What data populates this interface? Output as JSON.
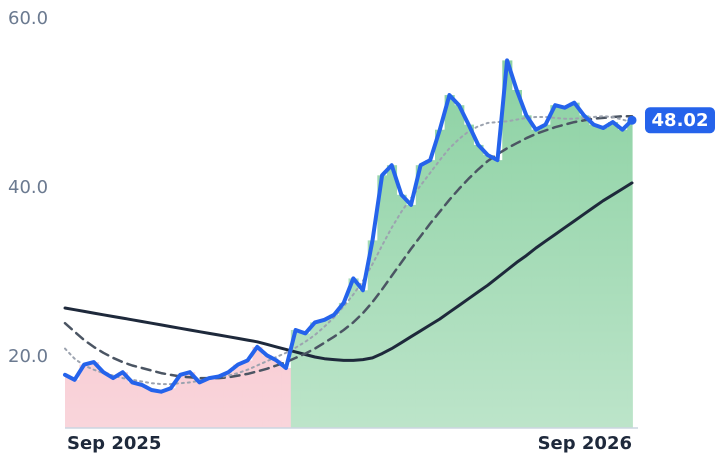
{
  "chart_data": {
    "type": "line",
    "categories": [
      "Sep 2025",
      null,
      null,
      null,
      null,
      null,
      null,
      null,
      null,
      null,
      null,
      null,
      null,
      null,
      null,
      null,
      null,
      null,
      null,
      null,
      null,
      null,
      null,
      null,
      null,
      null,
      null,
      null,
      null,
      null,
      null,
      null,
      null,
      null,
      null,
      null,
      null,
      null,
      null,
      null,
      null,
      null,
      null,
      null,
      null,
      null,
      null,
      null,
      null,
      null,
      null,
      null,
      null,
      null,
      null,
      null,
      null,
      null,
      null,
      "Sep 2026"
    ],
    "series": [
      {
        "color": "#2563eb",
        "style": "solid",
        "width": 4,
        "values": [
          17.9,
          17.3,
          19.1,
          19.4,
          18.2,
          17.5,
          18.2,
          17.0,
          16.7,
          16.1,
          15.9,
          16.3,
          17.9,
          18.2,
          17.0,
          17.5,
          17.7,
          18.2,
          19.1,
          19.6,
          21.2,
          20.2,
          19.6,
          18.7,
          23.2,
          22.8,
          24.1,
          24.4,
          25.0,
          26.4,
          29.3,
          27.9,
          33.8,
          41.5,
          42.7,
          39.2,
          38.0,
          42.7,
          43.3,
          46.9,
          51.0,
          49.8,
          47.5,
          45.1,
          43.9,
          43.3,
          55.1,
          51.6,
          48.6,
          46.9,
          47.5,
          49.8,
          49.5,
          50.1,
          48.6,
          47.5,
          47.1,
          47.8,
          46.9,
          48.02
        ]
      },
      {
        "color": "#9ca3af",
        "style": "dotted",
        "width": 2,
        "values": [
          21.0,
          19.8,
          19.0,
          18.5,
          18.1,
          17.8,
          17.5,
          17.3,
          17.1,
          16.9,
          16.8,
          16.8,
          16.9,
          17.0,
          17.2,
          17.4,
          17.6,
          17.8,
          18.1,
          18.5,
          19.0,
          19.5,
          20.0,
          20.5,
          21.1,
          21.8,
          22.6,
          23.6,
          24.7,
          26.0,
          27.4,
          29.0,
          31.0,
          33.2,
          35.3,
          37.2,
          38.8,
          40.3,
          41.8,
          43.3,
          44.7,
          45.8,
          46.7,
          47.3,
          47.7,
          47.8,
          47.9,
          48.1,
          48.3,
          48.4,
          48.4,
          48.3,
          48.2,
          48.2,
          48.3,
          48.4,
          48.5,
          48.4,
          48.1,
          47.8
        ]
      },
      {
        "color": "#4b5563",
        "style": "dashed",
        "width": 2.5,
        "values": [
          24.0,
          23.0,
          22.0,
          21.2,
          20.5,
          19.9,
          19.4,
          19.0,
          18.7,
          18.4,
          18.1,
          17.9,
          17.7,
          17.6,
          17.5,
          17.5,
          17.5,
          17.6,
          17.8,
          18.0,
          18.3,
          18.6,
          19.0,
          19.4,
          19.9,
          20.4,
          21.0,
          21.7,
          22.4,
          23.2,
          24.1,
          25.2,
          26.5,
          28.0,
          29.6,
          31.2,
          32.8,
          34.3,
          35.8,
          37.2,
          38.6,
          39.9,
          41.1,
          42.2,
          43.2,
          44.0,
          44.7,
          45.3,
          45.9,
          46.4,
          46.8,
          47.2,
          47.5,
          47.8,
          48.0,
          48.2,
          48.3,
          48.4,
          48.5,
          48.5
        ]
      },
      {
        "color": "#1e293b",
        "style": "solid",
        "width": 3,
        "values": [
          25.8,
          25.6,
          25.4,
          25.2,
          25.0,
          24.8,
          24.6,
          24.4,
          24.2,
          24.0,
          23.8,
          23.6,
          23.4,
          23.2,
          23.0,
          22.8,
          22.6,
          22.4,
          22.2,
          22.0,
          21.8,
          21.5,
          21.2,
          20.9,
          20.6,
          20.3,
          20.0,
          19.8,
          19.7,
          19.6,
          19.6,
          19.7,
          19.9,
          20.4,
          21.0,
          21.7,
          22.4,
          23.1,
          23.8,
          24.5,
          25.3,
          26.1,
          26.9,
          27.7,
          28.5,
          29.4,
          30.3,
          31.2,
          32.0,
          32.9,
          33.7,
          34.5,
          35.3,
          36.1,
          36.9,
          37.7,
          38.5,
          39.2,
          39.9,
          40.6
        ]
      }
    ],
    "area": {
      "up_color": "#86cf9e",
      "down_color": "#f5b3be"
    },
    "ylim": [
      11.6,
      60.0
    ],
    "yticks": [
      {
        "value": 20,
        "label": "20.0"
      },
      {
        "value": 40,
        "label": "40.0"
      },
      {
        "value": 60,
        "label": "60.0"
      }
    ],
    "grid": false
  }
}
